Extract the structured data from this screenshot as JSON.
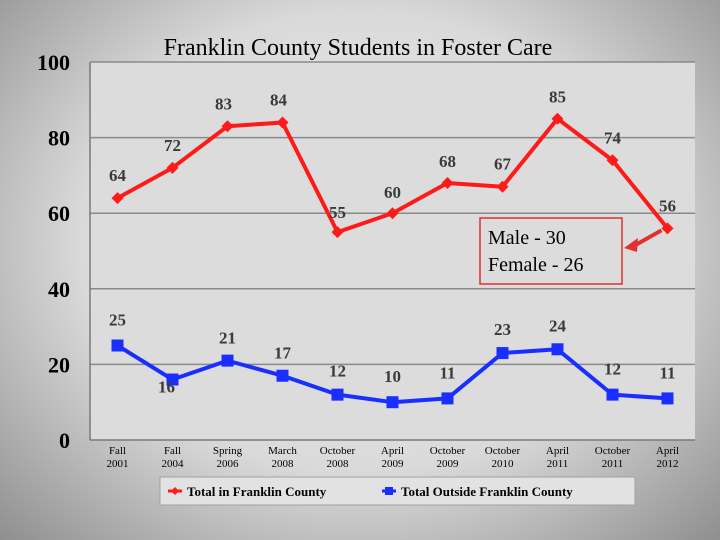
{
  "chart_data": {
    "type": "line",
    "title": "Franklin County Students in Foster Care",
    "categories": [
      "Fall\n2001",
      "Fall\n2004",
      "Spring\n2006",
      "March\n2008",
      "October\n2008",
      "April\n2009",
      "October\n2009",
      "October\n2010",
      "April\n2011",
      "October\n2011",
      "April\n2012"
    ],
    "series": [
      {
        "name": "Total in Franklin County",
        "color": "#ff1a1a",
        "marker": "diamond",
        "values": [
          64,
          72,
          83,
          84,
          55,
          60,
          68,
          67,
          85,
          74,
          56
        ]
      },
      {
        "name": "Total Outside Franklin County",
        "color": "#1a2fff",
        "marker": "square",
        "values": [
          25,
          16,
          21,
          17,
          12,
          10,
          11,
          23,
          24,
          12,
          11
        ]
      }
    ],
    "ylim": [
      0,
      100
    ],
    "yticks": [
      0,
      20,
      40,
      60,
      80,
      100
    ],
    "grid": true,
    "legend": "bottom",
    "annotation": {
      "lines": [
        "Male - 30",
        "Female - 26"
      ],
      "points_to": "April 2012, Total in Franklin County"
    }
  }
}
